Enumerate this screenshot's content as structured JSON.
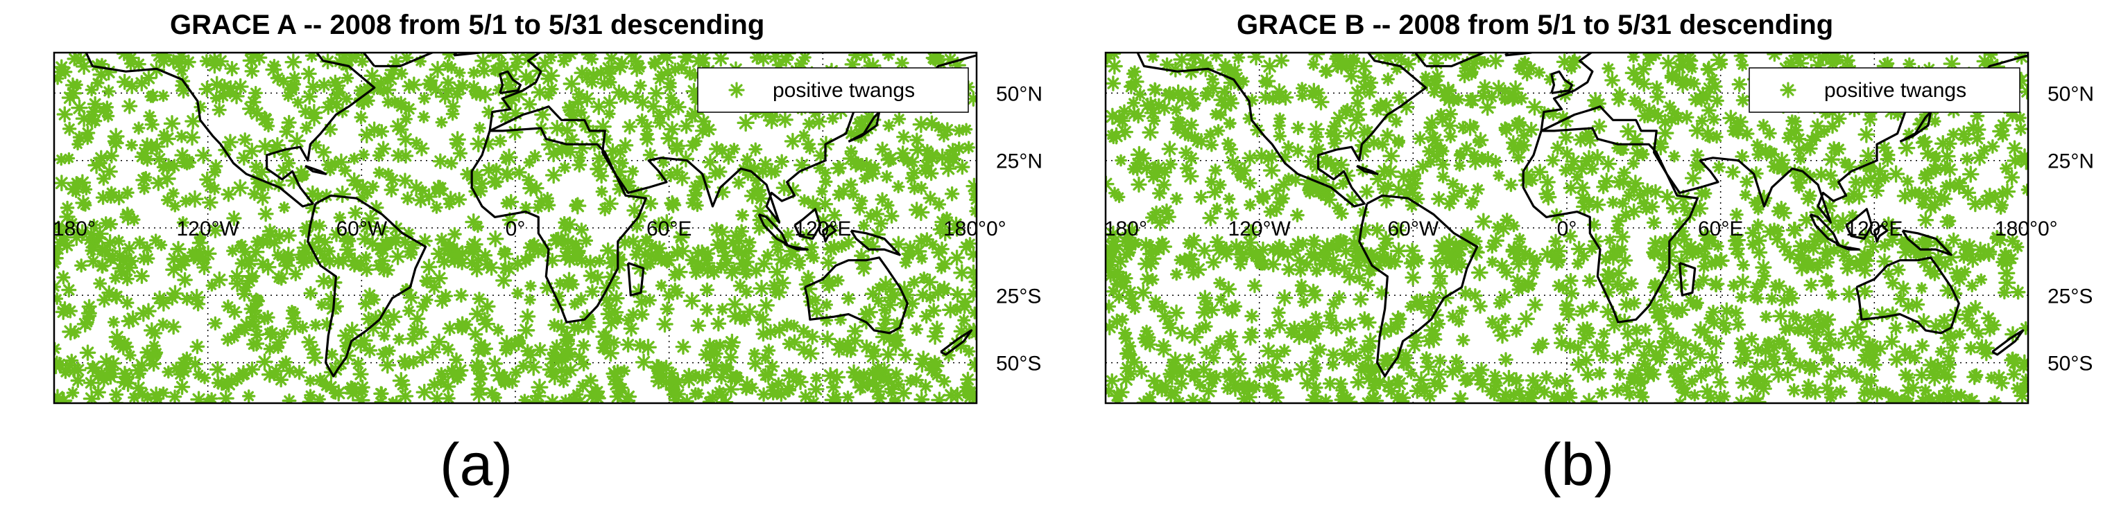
{
  "colors": {
    "marker": "#6dbe1e",
    "coast": "#000000",
    "frame": "#000000",
    "grid": "#000000"
  },
  "chart_data": [
    {
      "type": "scatter",
      "panel_label": "(a)",
      "title": "GRACE A -- 2008 from 5/1 to 5/31 descending",
      "legend": {
        "entry": "positive twangs",
        "marker": "asterisk",
        "position": "top-right"
      },
      "xlim": [
        -180,
        180
      ],
      "ylim": [
        -65,
        65
      ],
      "grid": "dotted",
      "x_ticks": [
        {
          "value": -180,
          "label": "180°"
        },
        {
          "value": -120,
          "label": "120°W"
        },
        {
          "value": -60,
          "label": "60°W"
        },
        {
          "value": 0,
          "label": "0°"
        },
        {
          "value": 60,
          "label": "60°E"
        },
        {
          "value": 120,
          "label": "120°E"
        },
        {
          "value": 180,
          "label": "180°"
        }
      ],
      "y_ticks": [
        {
          "value": 50,
          "label": "50°N"
        },
        {
          "value": 25,
          "label": "25°N"
        },
        {
          "value": 0,
          "label": "0°"
        },
        {
          "value": -25,
          "label": "25°S"
        },
        {
          "value": -50,
          "label": "50°S"
        }
      ],
      "series": [
        {
          "name": "positive twangs",
          "seed": 11
        }
      ]
    },
    {
      "type": "scatter",
      "panel_label": "(b)",
      "title": "GRACE B -- 2008 from 5/1 to 5/31 descending",
      "legend": {
        "entry": "positive twangs",
        "marker": "asterisk",
        "position": "top-right"
      },
      "xlim": [
        -180,
        180
      ],
      "ylim": [
        -65,
        65
      ],
      "grid": "dotted",
      "x_ticks": [
        {
          "value": -180,
          "label": "180°"
        },
        {
          "value": -120,
          "label": "120°W"
        },
        {
          "value": -60,
          "label": "60°W"
        },
        {
          "value": 0,
          "label": "0°"
        },
        {
          "value": 60,
          "label": "60°E"
        },
        {
          "value": 120,
          "label": "120°E"
        },
        {
          "value": 180,
          "label": "180°"
        }
      ],
      "y_ticks": [
        {
          "value": 50,
          "label": "50°N"
        },
        {
          "value": 25,
          "label": "25°N"
        },
        {
          "value": 0,
          "label": "0°"
        },
        {
          "value": -25,
          "label": "25°S"
        },
        {
          "value": -50,
          "label": "50°S"
        }
      ],
      "series": [
        {
          "name": "positive twangs",
          "seed": 29
        }
      ]
    }
  ]
}
